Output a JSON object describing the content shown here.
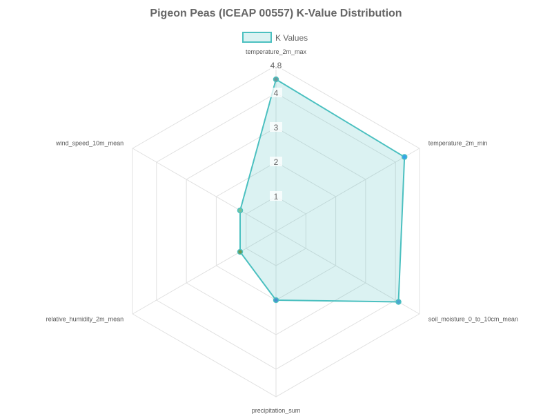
{
  "chart_data": {
    "type": "radar",
    "title": "Pigeon Peas (ICEAP 00557) K-Value Distribution",
    "axes": [
      "temperature_2m_max",
      "temperature_2m_min",
      "soil_moisture_0_to_10cm_mean",
      "precipitation_sum",
      "relative_humidity_2m_mean",
      "wind_speed_10m_mean"
    ],
    "series": [
      {
        "name": "K Values",
        "values": [
          4.4,
          4.3,
          4.1,
          2.0,
          1.2,
          1.2
        ],
        "fill_color": "rgba(75, 192, 192, 0.2)",
        "line_color": "#4bc0c0",
        "point_colors": [
          "#6a9a9c",
          "#36a2eb",
          "#4ba7d0",
          "#4a8fcf",
          "#6b9a55",
          "#79c29a"
        ]
      }
    ],
    "r_range": [
      0,
      4.8
    ],
    "ticks": [
      1,
      2,
      3,
      4,
      4.8
    ],
    "tick_labels": [
      "1",
      "2",
      "3",
      "4",
      "4.8"
    ],
    "legend_position": "top",
    "grid": true
  }
}
